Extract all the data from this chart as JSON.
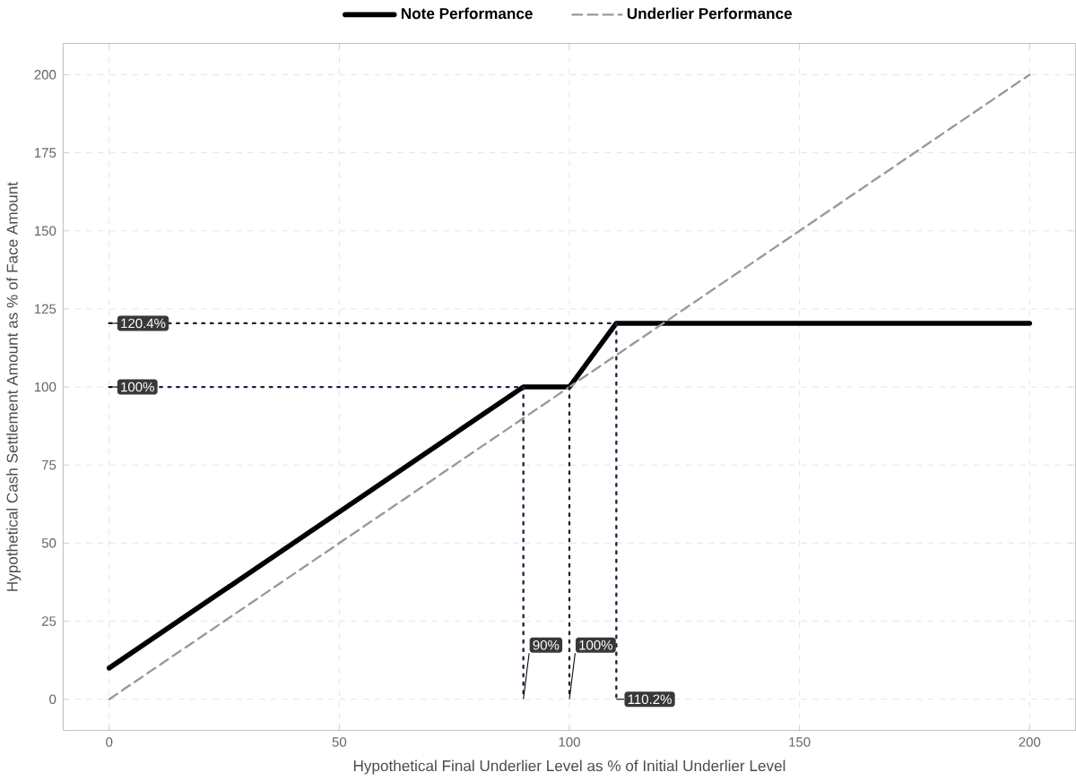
{
  "chart_data": {
    "type": "line",
    "xlabel": "Hypothetical Final Underlier Level as % of Initial Underlier Level",
    "ylabel": "Hypothetical Cash Settlement Amount as % of Face Amount",
    "xlim": [
      -10,
      210
    ],
    "ylim": [
      -10,
      210
    ],
    "xticks": [
      0,
      50,
      100,
      150,
      200
    ],
    "yticks": [
      0,
      25,
      50,
      75,
      100,
      125,
      150,
      175,
      200
    ],
    "grid": true,
    "legend": "top",
    "series": [
      {
        "name": "Note Performance",
        "color": "#000000",
        "x": [
          0,
          90,
          100,
          110.2,
          200
        ],
        "values": [
          10,
          100,
          100,
          120.4,
          120.4
        ],
        "line_style": "solid"
      },
      {
        "name": "Underlier Performance",
        "color": "#999999",
        "x": [
          0,
          200
        ],
        "values": [
          0,
          200
        ],
        "line_style": "dashed"
      },
      {
        "color": "#1f2040",
        "x": [
          0,
          110.2,
          110.2
        ],
        "values": [
          120.4,
          120.4,
          0
        ],
        "line_style": "dotted"
      },
      {
        "color": "#1f2040",
        "x": [
          0,
          90,
          90
        ],
        "values": [
          100,
          100,
          0
        ],
        "line_style": "dotted"
      },
      {
        "color": "#1f2040",
        "x": [
          100,
          100
        ],
        "values": [
          100,
          0
        ],
        "line_style": "dotted"
      }
    ],
    "annotations": [
      {
        "text": "120.4%",
        "x": 0,
        "y": 120.4
      },
      {
        "text": "100%",
        "x": 0,
        "y": 100
      },
      {
        "text": "90%",
        "x": 90,
        "y": 0
      },
      {
        "text": "100%",
        "x": 100,
        "y": 0
      },
      {
        "text": "110.2%",
        "x": 110.2,
        "y": 0
      }
    ]
  }
}
